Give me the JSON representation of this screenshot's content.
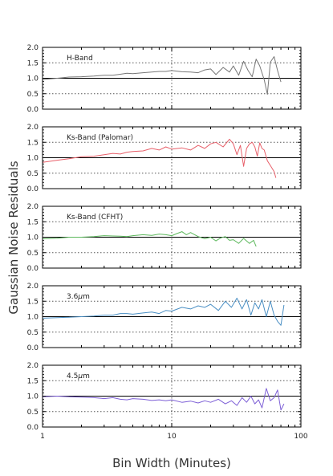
{
  "chart_data": {
    "type": "line",
    "xscale": "log",
    "xlim": [
      1,
      100
    ],
    "xticks": [
      1,
      10,
      100
    ],
    "xtick_labels": [
      "1",
      "10",
      "100"
    ],
    "xlabel": "Bin Width (Minutes)",
    "ylabel": "Gaussian Noise Residuals",
    "ylim": [
      0,
      2
    ],
    "yticks": [
      0,
      0.5,
      1.0,
      1.5,
      2.0
    ],
    "ytick_labels": [
      "0.0",
      "0.5",
      "1.0",
      "1.5",
      "2.0"
    ],
    "reference_line_y": 1.0,
    "reference_line_x": 10,
    "grid": "dotted horizontal at 0.5 and 1.5",
    "panels": [
      {
        "label": "H-Band",
        "label_parts": [
          "H-Band"
        ],
        "color": "#777777",
        "x": [
          1.0,
          1.3,
          1.6,
          2.0,
          2.5,
          3.0,
          3.5,
          4.0,
          4.5,
          5.0,
          6.0,
          7.0,
          8.0,
          9.0,
          10.0,
          12.0,
          14.0,
          16.0,
          18.0,
          20.0,
          22.0,
          25.0,
          28.0,
          30.0,
          33.0,
          36.0,
          39.0,
          42.0,
          45.0,
          48.0,
          52.0,
          55.0,
          58.0,
          62.0,
          66.0,
          70.0
        ],
        "y": [
          0.96,
          1.0,
          1.04,
          1.05,
          1.07,
          1.1,
          1.1,
          1.13,
          1.16,
          1.15,
          1.18,
          1.2,
          1.22,
          1.22,
          1.25,
          1.21,
          1.2,
          1.18,
          1.27,
          1.3,
          1.12,
          1.35,
          1.2,
          1.4,
          1.1,
          1.55,
          1.25,
          1.05,
          1.62,
          1.4,
          0.95,
          0.48,
          1.52,
          1.7,
          1.25,
          0.88
        ]
      },
      {
        "label": "Ks-Band (Palomar)",
        "label_parts": [
          "Ks-Band (Palomar)"
        ],
        "color": "#e8606a",
        "x": [
          1.0,
          1.3,
          1.6,
          2.0,
          2.5,
          3.0,
          3.5,
          4.0,
          4.5,
          5.0,
          6.0,
          7.0,
          8.0,
          9.0,
          10.0,
          12.0,
          14.0,
          16.0,
          18.0,
          20.0,
          22.0,
          25.0,
          28.0,
          30.0,
          32.0,
          34.0,
          36.0,
          38.0,
          40.0,
          42.0,
          44.0,
          46.0,
          48.0,
          50.0,
          52.0,
          55.0,
          58.0,
          62.0,
          64.0
        ],
        "y": [
          0.85,
          0.92,
          0.97,
          1.03,
          1.05,
          1.1,
          1.14,
          1.12,
          1.18,
          1.2,
          1.22,
          1.3,
          1.25,
          1.35,
          1.28,
          1.32,
          1.25,
          1.4,
          1.3,
          1.45,
          1.5,
          1.35,
          1.6,
          1.45,
          1.1,
          1.4,
          0.72,
          1.3,
          1.45,
          1.5,
          1.35,
          1.05,
          1.48,
          1.3,
          1.25,
          0.9,
          0.75,
          0.55,
          0.35
        ]
      },
      {
        "label": "Ks-Band (CFHT)",
        "label_parts": [
          "Ks-Band (CFHT)"
        ],
        "color": "#5cb85c",
        "x": [
          1.0,
          1.3,
          1.6,
          2.0,
          2.5,
          3.0,
          3.5,
          4.0,
          4.5,
          5.0,
          6.0,
          7.0,
          8.0,
          9.0,
          10.0,
          11.0,
          12.0,
          13.0,
          14.0,
          16.0,
          18.0,
          20.0,
          22.0,
          24.0,
          26.0,
          28.0,
          30.0,
          33.0,
          36.0,
          40.0,
          43.0,
          45.0
        ],
        "y": [
          0.95,
          0.97,
          1.0,
          1.0,
          1.02,
          1.05,
          1.04,
          1.03,
          1.02,
          1.05,
          1.08,
          1.06,
          1.1,
          1.08,
          1.05,
          1.12,
          1.18,
          1.08,
          1.15,
          1.02,
          0.95,
          1.0,
          0.88,
          0.98,
          1.02,
          0.9,
          0.92,
          0.8,
          0.96,
          0.8,
          0.9,
          0.7
        ]
      },
      {
        "label": "3.6μm",
        "label_parts": [
          "3.6",
          "μ",
          "m"
        ],
        "color": "#4a8fc4",
        "x": [
          1.0,
          1.3,
          1.6,
          2.0,
          2.5,
          3.0,
          3.5,
          4.0,
          4.5,
          5.0,
          6.0,
          7.0,
          8.0,
          9.0,
          10.0,
          12.0,
          14.0,
          16.0,
          18.0,
          20.0,
          23.0,
          26.0,
          29.0,
          32.0,
          35.0,
          38.0,
          41.0,
          44.0,
          47.0,
          50.0,
          54.0,
          58.0,
          62.0,
          66.0,
          70.0,
          74.0
        ],
        "y": [
          0.95,
          0.97,
          0.98,
          1.0,
          1.02,
          1.05,
          1.05,
          1.1,
          1.1,
          1.08,
          1.12,
          1.15,
          1.1,
          1.2,
          1.18,
          1.3,
          1.25,
          1.35,
          1.3,
          1.4,
          1.2,
          1.5,
          1.3,
          1.6,
          1.25,
          1.55,
          1.05,
          1.45,
          1.25,
          1.55,
          1.0,
          1.5,
          1.05,
          0.85,
          0.72,
          1.38
        ]
      },
      {
        "label": "4.5μm",
        "label_parts": [
          "4.5",
          "μ",
          "m"
        ],
        "color": "#7d5fd6",
        "x": [
          1.0,
          1.3,
          1.6,
          2.0,
          2.5,
          3.0,
          3.5,
          4.0,
          4.5,
          5.0,
          6.0,
          7.0,
          8.0,
          9.0,
          10.0,
          12.0,
          14.0,
          16.0,
          18.0,
          20.0,
          23.0,
          26.0,
          29.0,
          32.0,
          35.0,
          38.0,
          41.0,
          44.0,
          47.0,
          50.0,
          54.0,
          58.0,
          62.0,
          66.0,
          70.0,
          74.0
        ],
        "y": [
          0.98,
          1.0,
          0.98,
          0.97,
          0.95,
          0.92,
          0.95,
          0.9,
          0.88,
          0.92,
          0.9,
          0.86,
          0.88,
          0.85,
          0.88,
          0.8,
          0.84,
          0.78,
          0.85,
          0.8,
          0.9,
          0.75,
          0.85,
          0.7,
          0.95,
          0.8,
          1.0,
          0.75,
          0.88,
          0.62,
          1.25,
          0.85,
          0.95,
          1.2,
          0.55,
          0.75
        ]
      }
    ]
  }
}
